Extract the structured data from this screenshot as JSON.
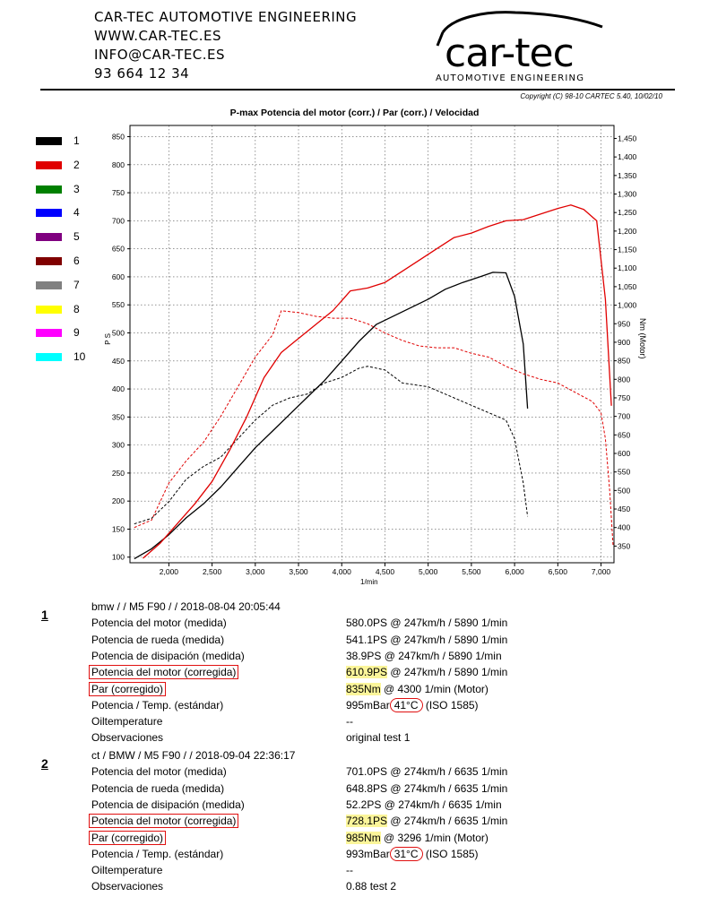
{
  "header": {
    "company": "CAR-TEC AUTOMOTIVE ENGINEERING",
    "web": "WWW.CAR-TEC.ES",
    "email": "INFO@CAR-TEC.ES",
    "phone": "93 664 12 34",
    "logo_text": "car-tec",
    "logo_subtitle": "AUTOMOTIVE ENGINEERING",
    "copyright": "Copyright (C) 98-10 CARTEC 5.40, 10/02/10"
  },
  "legend": [
    {
      "label": "1",
      "color": "#000000"
    },
    {
      "label": "2",
      "color": "#e00000"
    },
    {
      "label": "3",
      "color": "#008000"
    },
    {
      "label": "4",
      "color": "#0000ff"
    },
    {
      "label": "5",
      "color": "#800080"
    },
    {
      "label": "6",
      "color": "#800000"
    },
    {
      "label": "7",
      "color": "#808080"
    },
    {
      "label": "8",
      "color": "#ffff00"
    },
    {
      "label": "9",
      "color": "#ff00ff"
    },
    {
      "label": "10",
      "color": "#00ffff"
    }
  ],
  "chart_data": {
    "type": "line",
    "title": "P-max Potencia del motor (corr.) / Par (corr.) / Velocidad",
    "xlabel": "1/min",
    "ylabel": "P S",
    "y2label": "Nm (Motor)",
    "xlim": [
      1550,
      7150
    ],
    "ylim": [
      90,
      870
    ],
    "y2lim": [
      305,
      1485
    ],
    "x_ticks": [
      2000,
      2500,
      3000,
      3500,
      4000,
      4500,
      5000,
      5500,
      6000,
      6500,
      7000
    ],
    "x_tick_labels": [
      "2,000",
      "2,500",
      "3,000",
      "3,500",
      "4,000",
      "4,500",
      "5,000",
      "5,500",
      "6,000",
      "6,500",
      "7,000"
    ],
    "y_ticks": [
      100,
      150,
      200,
      250,
      300,
      350,
      400,
      450,
      500,
      550,
      600,
      650,
      700,
      750,
      800,
      850
    ],
    "y_tick_labels": [
      "100",
      "150",
      "200",
      "250",
      "300",
      "350",
      "400",
      "450",
      "500",
      "550",
      "600",
      "650",
      "700",
      "750",
      "800",
      "850"
    ],
    "y2_ticks": [
      350,
      400,
      450,
      500,
      550,
      600,
      650,
      700,
      750,
      800,
      850,
      900,
      950,
      1000,
      1050,
      1100,
      1150,
      1200,
      1250,
      1300,
      1350,
      1400,
      1450
    ],
    "y2_tick_labels": [
      "350",
      "400",
      "450",
      "500",
      "550",
      "600",
      "650",
      "700",
      "750",
      "800",
      "850",
      "900",
      "950",
      "1,000",
      "1,050",
      "1,100",
      "1,150",
      "1,200",
      "1,250",
      "1,300",
      "1,350",
      "1,400",
      "1,450"
    ],
    "grid": true,
    "series": [
      {
        "name": "1",
        "quantity": "power_ps",
        "color": "#000000",
        "dashed": false,
        "x": [
          1600,
          1800,
          2000,
          2200,
          2400,
          2600,
          2800,
          3000,
          3200,
          3400,
          3600,
          3800,
          4000,
          4200,
          4400,
          4600,
          4800,
          5000,
          5200,
          5400,
          5600,
          5750,
          5900,
          6000,
          6100,
          6150
        ],
        "y": [
          97,
          115,
          140,
          170,
          195,
          225,
          260,
          295,
          325,
          355,
          385,
          415,
          450,
          485,
          515,
          530,
          545,
          560,
          578,
          590,
          600,
          608,
          607,
          565,
          480,
          365
        ]
      },
      {
        "name": "1",
        "quantity": "torque_nm",
        "color": "#000000",
        "dashed": true,
        "x": [
          1600,
          1800,
          2000,
          2200,
          2400,
          2600,
          2800,
          3000,
          3200,
          3400,
          3600,
          3800,
          4000,
          4200,
          4300,
          4500,
          4700,
          5000,
          5300,
          5600,
          5900,
          6000,
          6100,
          6150
        ],
        "y": [
          410,
          425,
          470,
          530,
          565,
          590,
          640,
          690,
          730,
          750,
          760,
          790,
          805,
          830,
          835,
          825,
          790,
          780,
          750,
          720,
          690,
          640,
          520,
          430
        ]
      },
      {
        "name": "2",
        "quantity": "power_ps",
        "color": "#e00000",
        "dashed": false,
        "x": [
          1700,
          1900,
          2100,
          2300,
          2500,
          2700,
          2900,
          3100,
          3300,
          3500,
          3700,
          3900,
          4100,
          4300,
          4500,
          4700,
          4900,
          5100,
          5300,
          5500,
          5700,
          5900,
          6100,
          6300,
          6500,
          6650,
          6800,
          6950,
          7050,
          7120
        ],
        "y": [
          98,
          125,
          160,
          195,
          235,
          290,
          350,
          420,
          465,
          490,
          515,
          540,
          575,
          580,
          590,
          610,
          630,
          650,
          670,
          678,
          690,
          700,
          702,
          712,
          722,
          728,
          720,
          700,
          560,
          370
        ]
      },
      {
        "name": "2",
        "quantity": "torque_nm",
        "color": "#e00000",
        "dashed": true,
        "x": [
          1600,
          1800,
          2000,
          2200,
          2400,
          2600,
          2800,
          3000,
          3200,
          3300,
          3500,
          3700,
          3900,
          4100,
          4300,
          4500,
          4700,
          4900,
          5100,
          5300,
          5500,
          5700,
          5900,
          6100,
          6300,
          6500,
          6700,
          6900,
          7000,
          7050,
          7100,
          7140
        ],
        "y": [
          400,
          420,
          520,
          580,
          630,
          700,
          780,
          860,
          920,
          985,
          980,
          970,
          965,
          965,
          950,
          925,
          905,
          890,
          885,
          885,
          870,
          860,
          835,
          815,
          800,
          790,
          765,
          740,
          710,
          640,
          500,
          350
        ]
      }
    ]
  },
  "runs": [
    {
      "number": "1",
      "rows": [
        {
          "label": "bmw /  / M5 F90 /  / 2018-08-04 20:05:44",
          "value": ""
        },
        {
          "label": "Potencia del motor (medida)",
          "value": "580.0PS @ 247km/h / 5890 1/min"
        },
        {
          "label": "Potencia de rueda (medida)",
          "value": "541.1PS @ 247km/h / 5890 1/min"
        },
        {
          "label": "Potencia de disipación (medida)",
          "value": "38.9PS @ 247km/h / 5890 1/min"
        },
        {
          "label": "Potencia del motor (corregida)",
          "boxed": true,
          "value_hl": "610.9PS",
          "value": " @ 247km/h / 5890 1/min"
        },
        {
          "label": "Par (corregido)",
          "boxed": true,
          "value_hl": "835Nm",
          "value": " @ 4300 1/min (Motor)"
        },
        {
          "label": "Potencia / Temp. (estándar)",
          "value": "995mBar",
          "value_oval": "41°C",
          "value_tail": " (ISO 1585)"
        },
        {
          "label": "Oiltemperature",
          "value": "--"
        },
        {
          "label": "Observaciones",
          "value": "original test 1"
        }
      ]
    },
    {
      "number": "2",
      "rows": [
        {
          "label": "ct / BMW / M5 F90 /  / 2018-09-04 22:36:17",
          "value": ""
        },
        {
          "label": "Potencia del motor (medida)",
          "value": "701.0PS @ 274km/h / 6635 1/min"
        },
        {
          "label": "Potencia de rueda (medida)",
          "value": "648.8PS @ 274km/h / 6635 1/min"
        },
        {
          "label": "Potencia de disipación (medida)",
          "value": "52.2PS @ 274km/h / 6635 1/min"
        },
        {
          "label": "Potencia del motor (corregida)",
          "boxed": true,
          "value_hl": "728.1PS",
          "value": " @ 274km/h / 6635 1/min"
        },
        {
          "label": "Par (corregido)",
          "boxed": true,
          "value_hl": "985Nm",
          "value": " @ 3296 1/min (Motor)"
        },
        {
          "label": "Potencia / Temp. (estándar)",
          "value": "993mBar",
          "value_oval": "31°C",
          "value_tail": " (ISO 1585)"
        },
        {
          "label": "Oiltemperature",
          "value": "--"
        },
        {
          "label": "Observaciones",
          "value": "0.88 test  2"
        }
      ]
    }
  ]
}
